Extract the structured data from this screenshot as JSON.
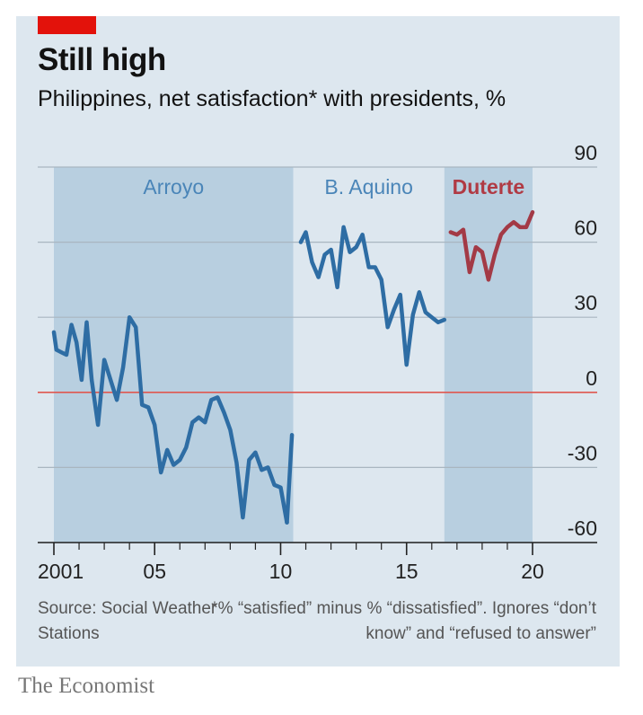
{
  "header": {
    "title": "Still high",
    "subtitle": "Philippines, net satisfaction* with presidents, %"
  },
  "footer": {
    "source": "Source: Social Weather Stations",
    "footnote": "*% “satisfied” minus % “dissatisfied”. Ignores “don’t know” and “refused to answer”",
    "brand": "The Economist"
  },
  "chart_data": {
    "type": "line",
    "title": "Still high",
    "subtitle": "Philippines, net satisfaction* with presidents, %",
    "xlim": [
      2001,
      2021
    ],
    "ylim": [
      -60,
      90
    ],
    "x_ticks": [
      2001,
      2005,
      2010,
      2015,
      2020
    ],
    "x_tick_labels": [
      "2001",
      "05",
      "10",
      "15",
      "20"
    ],
    "y_ticks": [
      90,
      60,
      30,
      0,
      -30,
      -60
    ],
    "y_tick_labels": [
      "90",
      "60",
      "30",
      "0",
      "-30",
      "-60"
    ],
    "grid": "horizontal",
    "zero_line_color": "#e0574f",
    "periods": [
      {
        "name": "Arroyo",
        "start": 2001,
        "end": 2010.5,
        "color": "#4a85b8"
      },
      {
        "name": "B. Aquino",
        "start": 2010.5,
        "end": 2016.5,
        "color": "#4a85b8"
      },
      {
        "name": "Duterte",
        "start": 2016.5,
        "end": 2020.0,
        "color": "#b03a44"
      }
    ],
    "series": [
      {
        "name": "Arroyo",
        "color": "#2e6da4",
        "x": [
          2001.0,
          2001.1,
          2001.3,
          2001.5,
          2001.7,
          2001.9,
          2002.1,
          2002.3,
          2002.5,
          2002.75,
          2003.0,
          2003.25,
          2003.5,
          2003.75,
          2004.0,
          2004.25,
          2004.5,
          2004.75,
          2005.0,
          2005.25,
          2005.5,
          2005.75,
          2006.0,
          2006.25,
          2006.5,
          2006.75,
          2007.0,
          2007.25,
          2007.5,
          2007.75,
          2008.0,
          2008.25,
          2008.5,
          2008.75,
          2009.0,
          2009.25,
          2009.5,
          2009.75,
          2010.0,
          2010.25
        ],
        "y": [
          24,
          17,
          16,
          15,
          27,
          20,
          5,
          28,
          5,
          -13,
          13,
          5,
          -3,
          10,
          30,
          26,
          -5,
          -6,
          -13,
          -32,
          -23,
          -29,
          -27,
          -22,
          -12,
          -10,
          -12,
          -3,
          -2,
          -8,
          -15,
          -28,
          -50,
          -27,
          -24,
          -31,
          -30,
          -37,
          -38,
          -52
        ]
      },
      {
        "name": "Arroyo final",
        "color": "#2e6da4",
        "x": [
          2010.25,
          2010.45
        ],
        "y": [
          -52,
          -17
        ]
      },
      {
        "name": "B. Aquino",
        "color": "#2e6da4",
        "x": [
          2010.8,
          2011.0,
          2011.25,
          2011.5,
          2011.75,
          2012.0,
          2012.25,
          2012.5,
          2012.75,
          2013.0,
          2013.25,
          2013.5,
          2013.75,
          2014.0,
          2014.25,
          2014.5,
          2014.75,
          2015.0,
          2015.25,
          2015.5,
          2015.75,
          2016.0,
          2016.25,
          2016.5
        ],
        "y": [
          60,
          64,
          52,
          46,
          55,
          57,
          42,
          66,
          56,
          58,
          63,
          50,
          50,
          45,
          26,
          33,
          39,
          11,
          31,
          40,
          32,
          30,
          28,
          29
        ]
      },
      {
        "name": "Duterte",
        "color": "#a33a46",
        "x": [
          2016.75,
          2017.0,
          2017.25,
          2017.5,
          2017.75,
          2018.0,
          2018.25,
          2018.5,
          2018.75,
          2019.0,
          2019.25,
          2019.5,
          2019.75,
          2020.0
        ],
        "y": [
          64,
          63,
          65,
          48,
          58,
          56,
          45,
          55,
          63,
          66,
          68,
          66,
          66,
          72
        ]
      }
    ]
  }
}
